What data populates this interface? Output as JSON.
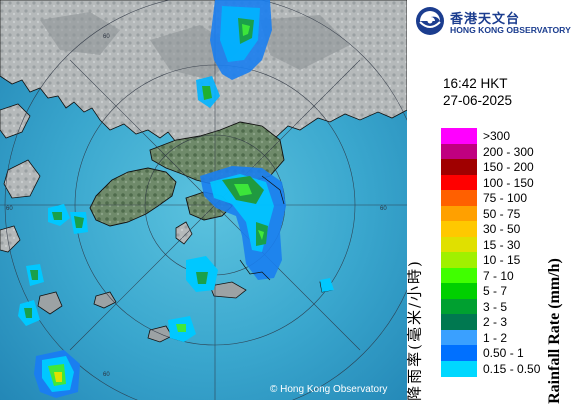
{
  "logo": {
    "name_zh": "香港天文台",
    "name_en": "HONG KONG OBSERVATORY",
    "icon": "observatory-logo-icon",
    "color": "#1b3d8f"
  },
  "timestamp": {
    "time": "16:42 HKT",
    "date": "27-06-2025"
  },
  "legend": {
    "title_zh": "降雨率(毫米/小時)",
    "title_en": "Rainfall Rate (mm/h)",
    "items": [
      {
        "label": ">300",
        "color": "#ff00ff"
      },
      {
        "label": "200 - 300",
        "color": "#c00080"
      },
      {
        "label": "150 - 200",
        "color": "#a00000"
      },
      {
        "label": "100 - 150",
        "color": "#ff0000"
      },
      {
        "label": "75 - 100",
        "color": "#ff6000"
      },
      {
        "label": "50 - 75",
        "color": "#ffa000"
      },
      {
        "label": "30 - 50",
        "color": "#ffc800"
      },
      {
        "label": "15 - 30",
        "color": "#e0e000"
      },
      {
        "label": "10 - 15",
        "color": "#a0f000"
      },
      {
        "label": "7 - 10",
        "color": "#40ff00"
      },
      {
        "label": "5 - 7",
        "color": "#00d000"
      },
      {
        "label": "3 - 5",
        "color": "#00a030"
      },
      {
        "label": "2 - 3",
        "color": "#007850"
      },
      {
        "label": "1 - 2",
        "color": "#3aa0ff"
      },
      {
        "label": "0.50 - 1",
        "color": "#0070ff"
      },
      {
        "label": "0.15 - 0.50",
        "color": "#00d8ff"
      }
    ]
  },
  "map": {
    "copyright": "© Hong Kong Observatory",
    "range_ring_labels": [
      "60",
      "60",
      "60",
      "60"
    ],
    "sea_color": "#3a9fc4",
    "land_color": "#b8bcbd"
  }
}
